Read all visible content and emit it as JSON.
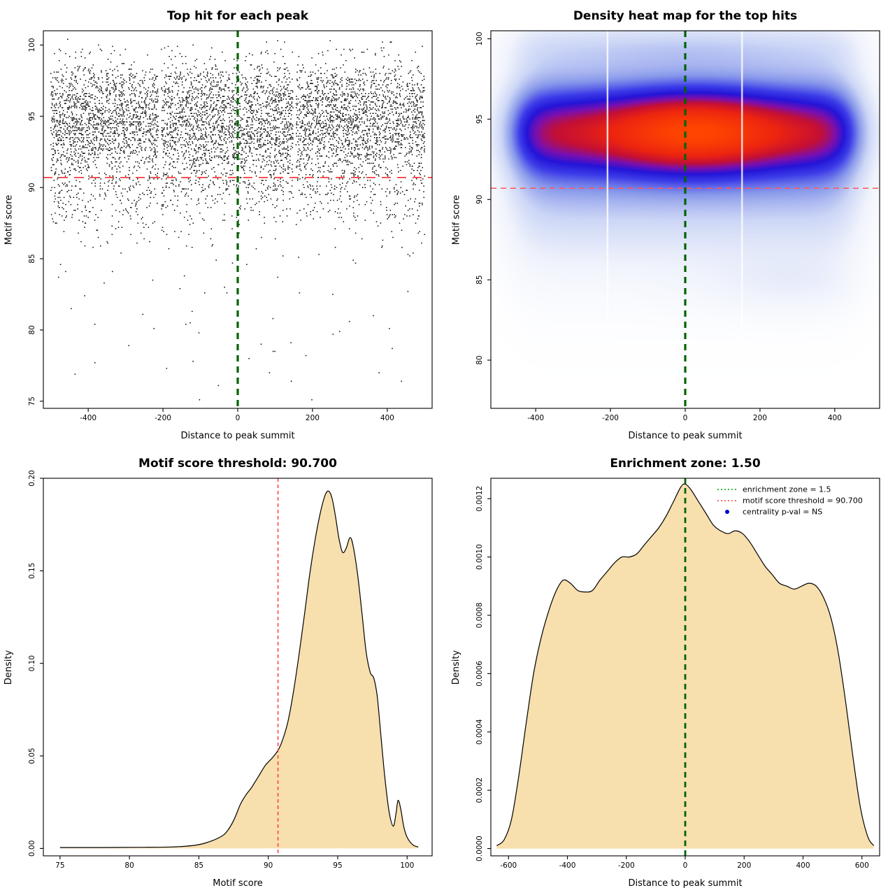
{
  "page": {
    "background_color": "#ffffff"
  },
  "chart_data": [
    {
      "id": "top-hit-scatter",
      "type": "scatter",
      "title": "Top hit for each peak",
      "xlabel": "Distance to peak summit",
      "ylabel": "Motif score",
      "xlim": [
        -520,
        520
      ],
      "ylim": [
        74.5,
        101
      ],
      "xticks": [
        -400,
        -200,
        0,
        200,
        400
      ],
      "xticklabels": [
        "-400",
        "-200",
        "0",
        "200",
        "400"
      ],
      "yticks": [
        75,
        80,
        85,
        90,
        95,
        100
      ],
      "yticklabels": [
        "75",
        "80",
        "85",
        "90",
        "95",
        "100"
      ],
      "grid": false,
      "points": {
        "count": 6500,
        "seed": 1337,
        "x_min": -500,
        "x_max": 500,
        "color": "#000000",
        "size": 1.5,
        "quantize_y": 0.1,
        "outlier_fraction": 0.002,
        "outlier_y_range": [
          76,
          86
        ],
        "gap_x": [
          -208,
          152
        ],
        "note": "x ~ uniform(-500,500); y sampled from the motif-score density curve (panel 3)"
      },
      "reference_lines": [
        {
          "name": "summit-center-line",
          "orientation": "vertical",
          "value": 0,
          "color": "#006400",
          "width": 3.2,
          "dash": "9,7"
        },
        {
          "name": "motif-threshold-line",
          "orientation": "horizontal",
          "value": 90.7,
          "color": "#ff3a3a",
          "width": 1.8,
          "dash": "13,9"
        }
      ]
    },
    {
      "id": "top-hit-heatmap",
      "type": "heatmap",
      "title": "Density heat map for the top hits",
      "xlabel": "Distance to peak summit",
      "ylabel": "Motif score",
      "xlim": [
        -520,
        520
      ],
      "ylim": [
        77,
        100.5
      ],
      "xticks": [
        -400,
        -200,
        0,
        200,
        400
      ],
      "xticklabels": [
        "-400",
        "-200",
        "0",
        "200",
        "400"
      ],
      "yticks": [
        80,
        85,
        90,
        95,
        100
      ],
      "yticklabels": [
        "80",
        "85",
        "90",
        "95",
        "100"
      ],
      "density_model": {
        "band_center_y": 94.2,
        "band_sigma_y": 1.7,
        "halo_center_y": 93.4,
        "halo_sigma_y": 3.9,
        "halo_weight": 0.42,
        "x_halfwidth": 448,
        "x_edge_softness": 30,
        "hotspot_x": 25,
        "hotspot_sigma_x": 155,
        "hotspot_gain": 0.95,
        "top_blob_y": 99.4,
        "top_blob_weight": 0.1,
        "low_blob_y": 84.8,
        "low_blob_x": 280,
        "low_blob_weight": 0.05,
        "gamma": 0.7
      },
      "white_gap_x": [
        -208,
        152
      ],
      "colormap": [
        {
          "stop": 0.0,
          "color": "#ffffff"
        },
        {
          "stop": 0.1,
          "color": "#f0f3fc"
        },
        {
          "stop": 0.22,
          "color": "#ccd6f6"
        },
        {
          "stop": 0.35,
          "color": "#8797ea"
        },
        {
          "stop": 0.47,
          "color": "#3c3ce8"
        },
        {
          "stop": 0.56,
          "color": "#2414d8"
        },
        {
          "stop": 0.64,
          "color": "#7a0faf"
        },
        {
          "stop": 0.72,
          "color": "#c40f35"
        },
        {
          "stop": 0.82,
          "color": "#ec2410"
        },
        {
          "stop": 1.0,
          "color": "#ff4500"
        }
      ],
      "reference_lines": [
        {
          "name": "summit-center-line",
          "orientation": "vertical",
          "value": 0,
          "color": "#006400",
          "width": 3.2,
          "dash": "9,7"
        },
        {
          "name": "motif-threshold-line",
          "orientation": "horizontal",
          "value": 90.7,
          "color": "#ff5555",
          "width": 1.5,
          "dash": "8,6"
        }
      ]
    },
    {
      "id": "motif-score-density",
      "type": "area",
      "title": "Motif score threshold: 90.700",
      "xlabel": "Motif score",
      "ylabel": "Density",
      "xlim": [
        73.8,
        101.8
      ],
      "ylim": [
        -0.004,
        0.2
      ],
      "xticks": [
        75,
        80,
        85,
        90,
        95,
        100
      ],
      "xticklabels": [
        "75",
        "80",
        "85",
        "90",
        "95",
        "100"
      ],
      "yticks": [
        0,
        0.05,
        0.1,
        0.15,
        0.2
      ],
      "yticklabels": [
        "0.00",
        "0.05",
        "0.10",
        "0.15",
        "0.20"
      ],
      "fill_color": "#f7dfae",
      "line_color": "#000000",
      "curve": [
        [
          75,
          0.0005
        ],
        [
          78,
          0.0005
        ],
        [
          81,
          0.0006
        ],
        [
          83,
          0.0008
        ],
        [
          84.5,
          0.0015
        ],
        [
          85.5,
          0.003
        ],
        [
          86.5,
          0.006
        ],
        [
          87,
          0.009
        ],
        [
          87.5,
          0.015
        ],
        [
          88,
          0.024
        ],
        [
          88.4,
          0.029
        ],
        [
          88.8,
          0.033
        ],
        [
          89.3,
          0.039
        ],
        [
          89.8,
          0.045
        ],
        [
          90.3,
          0.049
        ],
        [
          90.7,
          0.053
        ],
        [
          91,
          0.058
        ],
        [
          91.4,
          0.068
        ],
        [
          91.8,
          0.084
        ],
        [
          92.2,
          0.104
        ],
        [
          92.6,
          0.126
        ],
        [
          93,
          0.149
        ],
        [
          93.4,
          0.168
        ],
        [
          93.8,
          0.183
        ],
        [
          94.1,
          0.191
        ],
        [
          94.35,
          0.193
        ],
        [
          94.6,
          0.189
        ],
        [
          94.85,
          0.179
        ],
        [
          95.1,
          0.167
        ],
        [
          95.35,
          0.16
        ],
        [
          95.6,
          0.162
        ],
        [
          95.9,
          0.168
        ],
        [
          96.15,
          0.162
        ],
        [
          96.45,
          0.147
        ],
        [
          96.75,
          0.127
        ],
        [
          97.05,
          0.106
        ],
        [
          97.35,
          0.095
        ],
        [
          97.6,
          0.092
        ],
        [
          97.85,
          0.082
        ],
        [
          98.1,
          0.062
        ],
        [
          98.4,
          0.038
        ],
        [
          98.7,
          0.02
        ],
        [
          99,
          0.012
        ],
        [
          99.2,
          0.019
        ],
        [
          99.35,
          0.026
        ],
        [
          99.55,
          0.021
        ],
        [
          99.75,
          0.012
        ],
        [
          100,
          0.006
        ],
        [
          100.4,
          0.002
        ],
        [
          100.8,
          0.0008
        ]
      ],
      "reference_lines": [
        {
          "name": "motif-threshold-line",
          "orientation": "vertical",
          "value": 90.7,
          "color": "#ff3a3a",
          "width": 1.5,
          "dash": "5,4"
        }
      ]
    },
    {
      "id": "summit-distance-density",
      "type": "area",
      "title": "Enrichment zone: 1.50",
      "xlabel": "Distance to peak summit",
      "ylabel": "Density",
      "xlim": [
        -660,
        660
      ],
      "ylim": [
        -2.5e-05,
        0.00127
      ],
      "xticks": [
        -600,
        -400,
        -200,
        0,
        200,
        400,
        600
      ],
      "xticklabels": [
        "-600",
        "-400",
        "-200",
        "0",
        "200",
        "400",
        "600"
      ],
      "yticks": [
        0,
        0.0002,
        0.0004,
        0.0006,
        0.0008,
        0.001,
        0.0012
      ],
      "yticklabels": [
        "0.0000",
        "0.0002",
        "0.0004",
        "0.0006",
        "0.0008",
        "0.0010",
        "0.0012"
      ],
      "fill_color": "#f7dfae",
      "line_color": "#000000",
      "curve": [
        [
          -640,
          1e-05
        ],
        [
          -615,
          3e-05
        ],
        [
          -590,
          0.0001
        ],
        [
          -565,
          0.00025
        ],
        [
          -540,
          0.00043
        ],
        [
          -515,
          0.0006
        ],
        [
          -490,
          0.00072
        ],
        [
          -465,
          0.00081
        ],
        [
          -440,
          0.00088
        ],
        [
          -415,
          0.00092
        ],
        [
          -390,
          0.00091
        ],
        [
          -365,
          0.000885
        ],
        [
          -340,
          0.00088
        ],
        [
          -315,
          0.000885
        ],
        [
          -290,
          0.00092
        ],
        [
          -265,
          0.00095
        ],
        [
          -240,
          0.00098
        ],
        [
          -215,
          0.001
        ],
        [
          -190,
          0.001
        ],
        [
          -165,
          0.00101
        ],
        [
          -140,
          0.00104
        ],
        [
          -115,
          0.00107
        ],
        [
          -90,
          0.0011
        ],
        [
          -65,
          0.00114
        ],
        [
          -40,
          0.00119
        ],
        [
          -15,
          0.00124
        ],
        [
          0,
          0.00125
        ],
        [
          20,
          0.00123
        ],
        [
          45,
          0.00119
        ],
        [
          70,
          0.00115
        ],
        [
          95,
          0.00111
        ],
        [
          120,
          0.00109
        ],
        [
          145,
          0.00108
        ],
        [
          170,
          0.00109
        ],
        [
          195,
          0.00108
        ],
        [
          220,
          0.00105
        ],
        [
          245,
          0.00101
        ],
        [
          270,
          0.00097
        ],
        [
          295,
          0.00094
        ],
        [
          320,
          0.00091
        ],
        [
          345,
          0.0009
        ],
        [
          370,
          0.00089
        ],
        [
          395,
          0.0009
        ],
        [
          420,
          0.00091
        ],
        [
          445,
          0.0009
        ],
        [
          470,
          0.00086
        ],
        [
          495,
          0.00079
        ],
        [
          520,
          0.00067
        ],
        [
          545,
          0.0005
        ],
        [
          570,
          0.00031
        ],
        [
          595,
          0.00014
        ],
        [
          620,
          4e-05
        ],
        [
          640,
          1e-05
        ]
      ],
      "reference_lines": [
        {
          "name": "summit-center-line",
          "orientation": "vertical",
          "value": 0,
          "color": "#006400",
          "width": 2.8,
          "dash": "8,6"
        }
      ],
      "legend": {
        "position": "top-right",
        "entries": [
          {
            "label": "enrichment zone = 1.5",
            "color": "#00a000",
            "marker": "dotted-line"
          },
          {
            "label": "motif score threshold = 90.700",
            "color": "#ff3a3a",
            "marker": "dotted-line"
          },
          {
            "label": "centrality p-val = NS",
            "color": "#0000cd",
            "marker": "point"
          }
        ]
      }
    }
  ]
}
